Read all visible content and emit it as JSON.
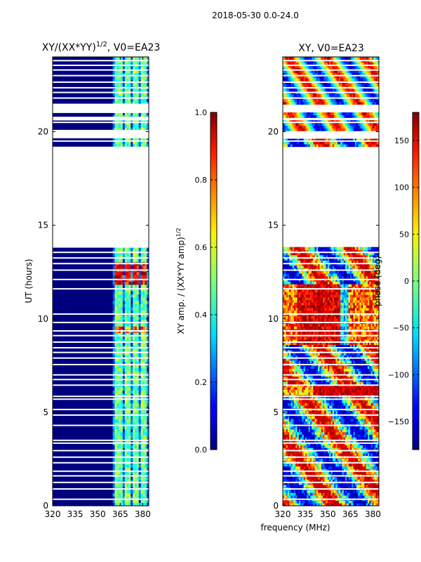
{
  "figure": {
    "suptitle": "2018-05-30 0.0-24.0",
    "xlabel": "frequency (MHz)"
  },
  "chart_data": [
    {
      "type": "heatmap",
      "title_main": "XY/(XX*YY)",
      "title_exp": "1/2",
      "title_tail": ", V0=EA23",
      "ylabel": "UT (hours)",
      "xlim": [
        320,
        384
      ],
      "ylim": [
        0,
        24
      ],
      "xticks": [
        320,
        335,
        350,
        365,
        380
      ],
      "yticks": [
        0,
        5,
        10,
        15,
        20
      ],
      "xtick_labels": [
        "320",
        "335",
        "350",
        "365",
        "380"
      ],
      "ytick_labels": [
        "0",
        "5",
        "10",
        "15",
        "20"
      ],
      "colorbar": {
        "label_main": "XY amp. / (XX*YY amp)",
        "label_exp": "1/2",
        "range": [
          0.0,
          1.0
        ],
        "ticks": [
          0.0,
          0.2,
          0.4,
          0.6,
          0.8,
          1.0
        ],
        "tick_labels": [
          "0.0",
          "0.2",
          "0.4",
          "0.6",
          "0.8",
          "1.0"
        ],
        "colormap": "jet"
      },
      "blank_ut_ranges": [
        [
          13.8,
          19.2
        ],
        [
          19.65,
          20.1
        ],
        [
          20.6,
          20.8
        ],
        [
          21.0,
          21.5
        ]
      ],
      "bright_freq_bands_mhz": [
        [
          362,
          366
        ],
        [
          368,
          372
        ],
        [
          374,
          377
        ],
        [
          379,
          382
        ]
      ]
    },
    {
      "type": "heatmap",
      "title": "XY, V0=EA23",
      "xlim": [
        320,
        384
      ],
      "ylim": [
        0,
        24
      ],
      "xticks": [
        320,
        335,
        350,
        365,
        380
      ],
      "yticks": [
        0,
        5,
        10,
        15,
        20
      ],
      "xtick_labels": [
        "320",
        "335",
        "350",
        "365",
        "380"
      ],
      "ytick_labels": [
        "0",
        "5",
        "10",
        "15",
        "20"
      ],
      "colorbar": {
        "label": "phase (deg)",
        "range": [
          -180,
          180
        ],
        "ticks": [
          -150,
          -100,
          -50,
          0,
          50,
          100,
          150
        ],
        "tick_labels": [
          "−150",
          "−100",
          "−50",
          "0",
          "50",
          "100",
          "150"
        ],
        "colormap": "jet"
      },
      "blank_ut_ranges": [
        [
          13.8,
          19.2
        ],
        [
          19.65,
          20.1
        ],
        [
          20.6,
          20.8
        ],
        [
          21.0,
          21.5
        ]
      ]
    }
  ]
}
